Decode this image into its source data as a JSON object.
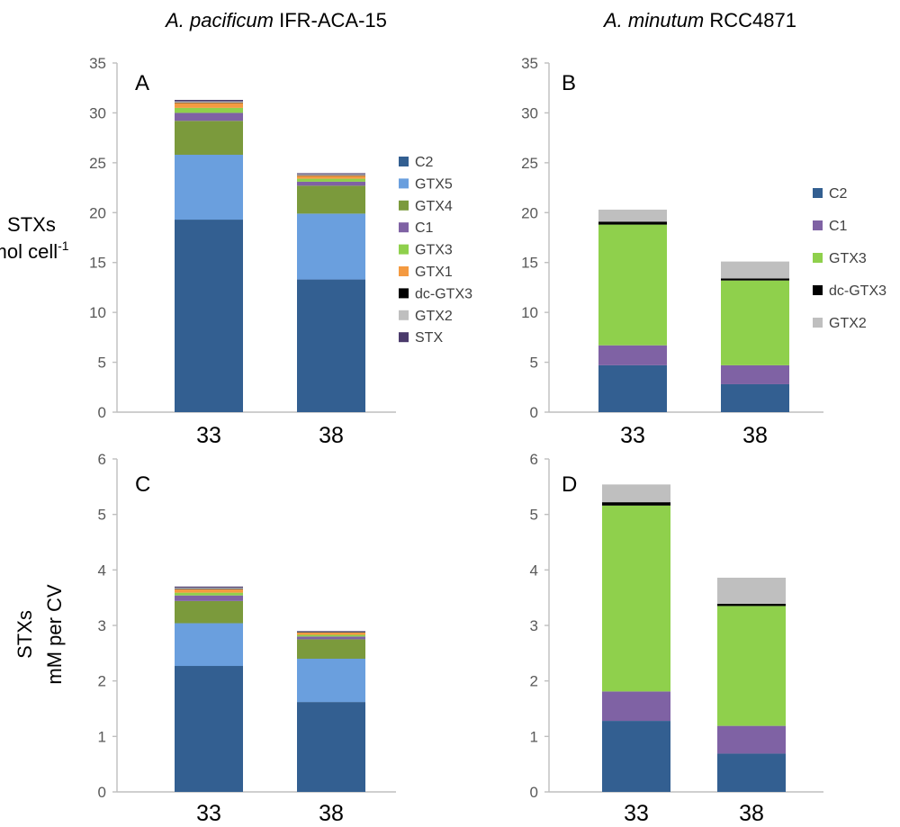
{
  "titles": {
    "left_species": "A. pacificum",
    "left_strain": "IFR-ACA-15",
    "right_species": "A. minutum",
    "right_strain": "RCC4871"
  },
  "ylabels": {
    "top_line1": "STXs",
    "top_line2_base": "fmol cell",
    "top_line2_sup": "-1",
    "bottom_line1": "STXs",
    "bottom_line2": "mM per CV"
  },
  "colors": {
    "C2": "#335f91",
    "GTX5": "#6a9fde",
    "GTX4": "#7b9a3c",
    "C1": "#7f62a4",
    "GTX3": "#8fd04c",
    "GTX1": "#f49a41",
    "dc-GTX3": "#000000",
    "GTX2": "#bfbfbf",
    "STX": "#4a3a6b"
  },
  "chart_data": [
    {
      "panel": "A",
      "type": "bar",
      "stacked": true,
      "categories": [
        "33",
        "38"
      ],
      "ylim": [
        0,
        35
      ],
      "yticks": [
        "0",
        "5",
        "10",
        "15",
        "20",
        "25",
        "30",
        "35"
      ],
      "legend": [
        "C2",
        "GTX5",
        "GTX4",
        "C1",
        "GTX3",
        "GTX1",
        "dc-GTX3",
        "GTX2",
        "STX"
      ],
      "legend_position": "right",
      "series": [
        {
          "name": "C2",
          "values": [
            19.3,
            13.3
          ]
        },
        {
          "name": "GTX5",
          "values": [
            6.5,
            6.6
          ]
        },
        {
          "name": "GTX4",
          "values": [
            3.4,
            2.8
          ]
        },
        {
          "name": "C1",
          "values": [
            0.8,
            0.4
          ]
        },
        {
          "name": "GTX3",
          "values": [
            0.5,
            0.3
          ]
        },
        {
          "name": "GTX1",
          "values": [
            0.5,
            0.3
          ]
        },
        {
          "name": "dc-GTX3",
          "values": [
            0.05,
            0.05
          ]
        },
        {
          "name": "GTX2",
          "values": [
            0.1,
            0.1
          ]
        },
        {
          "name": "STX",
          "values": [
            0.15,
            0.1
          ]
        }
      ]
    },
    {
      "panel": "B",
      "type": "bar",
      "stacked": true,
      "categories": [
        "33",
        "38"
      ],
      "ylim": [
        0,
        35
      ],
      "yticks": [
        "0",
        "5",
        "10",
        "15",
        "20",
        "25",
        "30",
        "35"
      ],
      "legend": [
        "C2",
        "C1",
        "GTX3",
        "dc-GTX3",
        "GTX2"
      ],
      "legend_position": "right",
      "series": [
        {
          "name": "C2",
          "values": [
            4.7,
            2.8
          ]
        },
        {
          "name": "C1",
          "values": [
            2.0,
            1.9
          ]
        },
        {
          "name": "GTX3",
          "values": [
            12.1,
            8.5
          ]
        },
        {
          "name": "dc-GTX3",
          "values": [
            0.3,
            0.2
          ]
        },
        {
          "name": "GTX2",
          "values": [
            1.2,
            1.7
          ]
        }
      ]
    },
    {
      "panel": "C",
      "type": "bar",
      "stacked": true,
      "categories": [
        "33",
        "38"
      ],
      "ylim": [
        0,
        6
      ],
      "yticks": [
        "0",
        "1",
        "2",
        "3",
        "4",
        "5",
        "6"
      ],
      "series": [
        {
          "name": "C2",
          "values": [
            2.27,
            1.62
          ]
        },
        {
          "name": "GTX5",
          "values": [
            0.77,
            0.78
          ]
        },
        {
          "name": "GTX4",
          "values": [
            0.4,
            0.35
          ]
        },
        {
          "name": "C1",
          "values": [
            0.1,
            0.05
          ]
        },
        {
          "name": "GTX3",
          "values": [
            0.05,
            0.03
          ]
        },
        {
          "name": "GTX1",
          "values": [
            0.06,
            0.04
          ]
        },
        {
          "name": "dc-GTX3",
          "values": [
            0.01,
            0.01
          ]
        },
        {
          "name": "GTX2",
          "values": [
            0.02,
            0.01
          ]
        },
        {
          "name": "STX",
          "values": [
            0.02,
            0.01
          ]
        }
      ]
    },
    {
      "panel": "D",
      "type": "bar",
      "stacked": true,
      "categories": [
        "33",
        "38"
      ],
      "ylim": [
        0,
        6
      ],
      "yticks": [
        "0",
        "1",
        "2",
        "3",
        "4",
        "5",
        "6"
      ],
      "series": [
        {
          "name": "C2",
          "values": [
            1.28,
            0.69
          ]
        },
        {
          "name": "C1",
          "values": [
            0.53,
            0.5
          ]
        },
        {
          "name": "GTX3",
          "values": [
            3.35,
            2.16
          ]
        },
        {
          "name": "dc-GTX3",
          "values": [
            0.06,
            0.04
          ]
        },
        {
          "name": "GTX2",
          "values": [
            0.32,
            0.47
          ]
        }
      ]
    }
  ]
}
